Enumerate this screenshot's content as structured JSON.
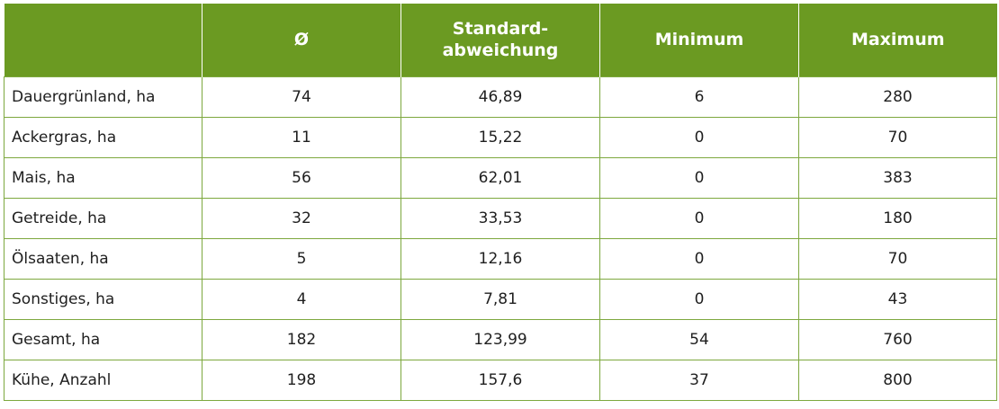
{
  "table": {
    "headers": [
      "",
      "Ø",
      "Standard-\nabweichung",
      "Minimum",
      "Maximum"
    ],
    "rows": [
      [
        "Dauergrünland, ha",
        "74",
        "46,89",
        "6",
        "280"
      ],
      [
        "Ackergras, ha",
        "11",
        "15,22",
        "0",
        "70"
      ],
      [
        "Mais, ha",
        "56",
        "62,01",
        "0",
        "383"
      ],
      [
        "Getreide, ha",
        "32",
        "33,53",
        "0",
        "180"
      ],
      [
        "Ölsaaten, ha",
        "5",
        "12,16",
        "0",
        "70"
      ],
      [
        "Sonstiges, ha",
        "4",
        "7,81",
        "0",
        "43"
      ],
      [
        "Gesamt, ha",
        "182",
        "123,99",
        "54",
        "760"
      ],
      [
        "Kühe, Anzahl",
        "198",
        "157,6",
        "37",
        "800"
      ]
    ]
  },
  "colors": {
    "header_bg": "#6b9a22",
    "header_text": "#ffffff",
    "grid": "#7da83e"
  }
}
